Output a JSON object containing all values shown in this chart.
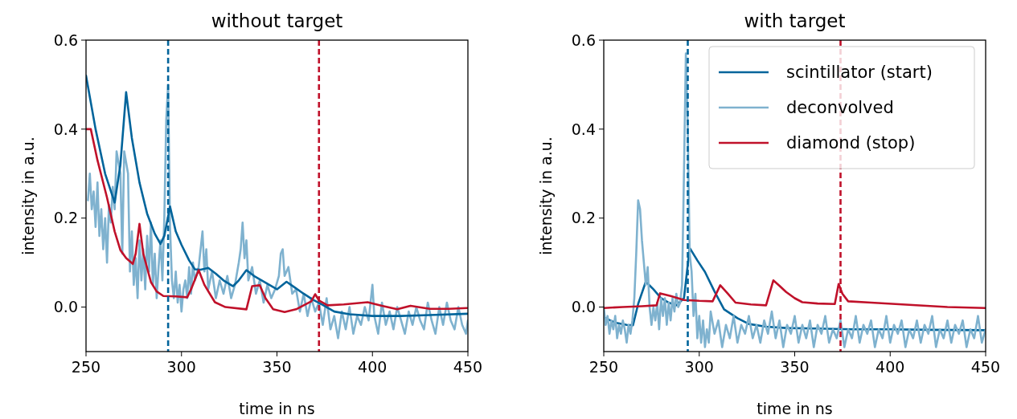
{
  "chart_data": [
    {
      "type": "line",
      "title": "without target",
      "xlabel": "time in ns",
      "ylabel": "intensity in a.u.",
      "xlim": [
        250,
        450
      ],
      "xticks": [
        250,
        300,
        350,
        400,
        450
      ],
      "ylim": [
        -0.1,
        0.6
      ],
      "yticks": [
        {
          "value": 0,
          "label": "0.0"
        },
        {
          "value": 0.2,
          "label": "0.2"
        },
        {
          "value": 0.4,
          "label": "0.4"
        },
        {
          "value": 0.6,
          "label": "0.6"
        }
      ],
      "grid": false,
      "legend": false,
      "line_style": "solid",
      "marker": "none",
      "series": [
        {
          "color": "#7fb2cf",
          "x": [
            251,
            252,
            253,
            254,
            255,
            256,
            257,
            258,
            259,
            260,
            261,
            262,
            263,
            264,
            265,
            266,
            268,
            269,
            270,
            272,
            273,
            274,
            275,
            276,
            277,
            278,
            279,
            280,
            281,
            282,
            283,
            284,
            285,
            286,
            287,
            288,
            289,
            290,
            291,
            292,
            293,
            294,
            295,
            296,
            297,
            298,
            299,
            300,
            301,
            302,
            303,
            304,
            305,
            306,
            307,
            309,
            311,
            312,
            313,
            314,
            316,
            318,
            320,
            322,
            324,
            326,
            328,
            330,
            331,
            332,
            333,
            334,
            335,
            337,
            339,
            341,
            343,
            345,
            347,
            349,
            351,
            352,
            353,
            354,
            356,
            358,
            360,
            362,
            364,
            366,
            368,
            370,
            372,
            374,
            376,
            378,
            380,
            382,
            384,
            386,
            388,
            390,
            392,
            394,
            396,
            398,
            400,
            401,
            403,
            405,
            407,
            409,
            411,
            413,
            415,
            417,
            419,
            421,
            423,
            425,
            427,
            429,
            431,
            433,
            435,
            437,
            439,
            441,
            443,
            445,
            447,
            449,
            450
          ],
          "values": [
            0.24,
            0.3,
            0.22,
            0.26,
            0.18,
            0.28,
            0.16,
            0.22,
            0.13,
            0.2,
            0.1,
            0.23,
            0.19,
            0.27,
            0.22,
            0.35,
            0.3,
            0.12,
            0.35,
            0.3,
            0.08,
            0.17,
            0.05,
            0.11,
            0.02,
            0.15,
            0.06,
            0.13,
            0.04,
            0.16,
            0.08,
            0.19,
            0.05,
            0.12,
            0.02,
            0.09,
            0.15,
            0.06,
            0.2,
            0.42,
            0.5,
            0.18,
            0.06,
            0.02,
            0.08,
            0.01,
            0.05,
            -0.01,
            0.04,
            0.06,
            0.02,
            0.09,
            0.03,
            0.1,
            0.06,
            0.09,
            0.17,
            0.08,
            0.13,
            0.04,
            0.08,
            0.02,
            0.06,
            0.03,
            0.07,
            0.02,
            0.05,
            0.1,
            0.13,
            0.19,
            0.11,
            0.15,
            0.06,
            0.09,
            0.03,
            0.06,
            0.01,
            0.05,
            0.02,
            0.04,
            0.07,
            0.12,
            0.13,
            0.07,
            0.09,
            0.03,
            0.04,
            -0.01,
            0.03,
            -0.02,
            0.02,
            -0.01,
            0.01,
            -0.04,
            0.02,
            -0.05,
            -0.02,
            -0.07,
            -0.01,
            -0.05,
            0,
            -0.06,
            -0.02,
            -0.04,
            0,
            -0.03,
            0.05,
            -0.02,
            -0.06,
            0.01,
            -0.04,
            -0.01,
            -0.05,
            0,
            -0.03,
            -0.06,
            -0.01,
            -0.04,
            0,
            -0.03,
            -0.05,
            0.01,
            -0.03,
            -0.06,
            0,
            -0.04,
            0.01,
            -0.03,
            -0.05,
            0,
            -0.04,
            -0.06,
            -0.03
          ]
        },
        {
          "color": "#00649b",
          "x": [
            250,
            255,
            260,
            265,
            268,
            271,
            274,
            278,
            282,
            286,
            289,
            291,
            294,
            297,
            300,
            304,
            307,
            310,
            314,
            318,
            322,
            327,
            330,
            334,
            338,
            342,
            346,
            350,
            355,
            359,
            364,
            369,
            374,
            380,
            388,
            400,
            415,
            430,
            450
          ],
          "values": [
            0.52,
            0.4,
            0.3,
            0.235,
            0.32,
            0.483,
            0.38,
            0.28,
            0.21,
            0.165,
            0.142,
            0.16,
            0.226,
            0.17,
            0.14,
            0.105,
            0.085,
            0.084,
            0.088,
            0.075,
            0.06,
            0.047,
            0.06,
            0.083,
            0.07,
            0.06,
            0.05,
            0.04,
            0.057,
            0.045,
            0.03,
            0.016,
            0.005,
            -0.01,
            -0.016,
            -0.02,
            -0.02,
            -0.018,
            -0.015
          ]
        },
        {
          "color": "#c0112a",
          "x": [
            250,
            252.5,
            256,
            261,
            265,
            268,
            271,
            274.5,
            276,
            278,
            280,
            284,
            287,
            290.5,
            297,
            303,
            305,
            309,
            312,
            317.5,
            323,
            334,
            337,
            341,
            344,
            348,
            354,
            360,
            368,
            370,
            372,
            376.5,
            385,
            397.5,
            405,
            413,
            420,
            430,
            440,
            449.5
          ],
          "values": [
            0.4,
            0.4,
            0.33,
            0.246,
            0.17,
            0.128,
            0.11,
            0.097,
            0.12,
            0.187,
            0.12,
            0.056,
            0.035,
            0.025,
            0.024,
            0.022,
            0.04,
            0.083,
            0.05,
            0.011,
            0.0,
            -0.005,
            0.047,
            0.049,
            0.02,
            -0.005,
            -0.011,
            -0.005,
            0.013,
            0.029,
            0.015,
            0.004,
            0.006,
            0.011,
            0.003,
            -0.005,
            0.003,
            -0.004,
            -0.004,
            -0.002
          ]
        }
      ],
      "ref_lines": [
        {
          "axis": "x",
          "value": 293,
          "color": "#00649b",
          "line_style": "dashed"
        },
        {
          "axis": "x",
          "value": 372,
          "color": "#c0112a",
          "line_style": "dashed"
        }
      ]
    },
    {
      "type": "line",
      "title": "with target",
      "xlabel": "time in ns",
      "ylabel": "intensity in a.u.",
      "xlim": [
        250,
        450
      ],
      "xticks": [
        250,
        300,
        350,
        400,
        450
      ],
      "ylim": [
        -0.1,
        0.6
      ],
      "yticks": [
        {
          "value": 0,
          "label": "0.0"
        },
        {
          "value": 0.2,
          "label": "0.2"
        },
        {
          "value": 0.4,
          "label": "0.4"
        },
        {
          "value": 0.6,
          "label": "0.6"
        }
      ],
      "grid": false,
      "legend": "top right",
      "line_style": "solid",
      "marker": "none",
      "series": [
        {
          "name": "scintillator (start)",
          "color": "#00649b",
          "x": [
            250,
            256,
            262,
            265.3,
            268,
            272,
            276,
            280,
            284,
            288,
            292,
            295,
            299,
            303,
            308,
            313,
            320,
            326,
            335,
            345.5,
            360,
            380,
            400,
            420,
            450
          ],
          "values": [
            -0.023,
            -0.035,
            -0.04,
            -0.041,
            0.007,
            0.057,
            0.04,
            0.02,
            0.01,
            0.004,
            0.02,
            0.133,
            0.105,
            0.079,
            0.035,
            -0.005,
            -0.025,
            -0.038,
            -0.044,
            -0.047,
            -0.048,
            -0.05,
            -0.05,
            -0.051,
            -0.052
          ]
        },
        {
          "name": "deconvolved",
          "color": "#7fb2cf",
          "x": [
            250,
            251,
            252,
            253,
            254,
            255,
            256,
            257,
            258,
            259,
            260,
            261,
            262,
            263,
            264,
            265,
            266,
            267,
            268,
            269,
            270,
            271,
            272,
            273,
            274,
            275,
            276,
            277,
            278,
            279,
            280,
            281,
            282,
            283,
            284,
            285,
            286,
            287,
            288,
            289,
            290,
            291,
            292,
            293,
            294,
            295,
            296,
            297,
            298,
            299,
            300,
            301,
            302,
            303,
            304,
            305,
            306,
            308,
            310,
            312,
            314,
            316,
            318,
            320,
            322,
            324,
            326,
            328,
            330,
            332,
            334,
            336,
            338,
            340,
            342,
            344,
            346,
            348,
            350,
            352,
            354,
            356,
            358,
            360,
            362,
            364,
            366,
            368,
            370,
            372,
            374,
            376,
            378,
            380,
            382,
            384,
            386,
            388,
            390,
            392,
            394,
            396,
            398,
            400,
            402,
            404,
            406,
            408,
            410,
            412,
            414,
            416,
            418,
            420,
            422,
            424,
            426,
            428,
            430,
            432,
            434,
            436,
            438,
            440,
            442,
            444,
            446,
            448,
            450
          ],
          "values": [
            0,
            -0.04,
            -0.02,
            -0.06,
            -0.03,
            -0.05,
            -0.02,
            -0.07,
            -0.04,
            -0.06,
            -0.03,
            -0.05,
            -0.08,
            -0.04,
            -0.06,
            -0.03,
            0.02,
            0.12,
            0.24,
            0.22,
            0.15,
            0.1,
            0.05,
            0.09,
            0,
            -0.04,
            0,
            -0.03,
            0.01,
            -0.05,
            0.02,
            -0.02,
            0.02,
            -0.04,
            0.01,
            -0.03,
            0.02,
            -0.01,
            0.03,
            0,
            0.01,
            0.05,
            0.3,
            0.57,
            0.4,
            0.12,
            0.08,
            -0.02,
            0.03,
            -0.07,
            -0.02,
            -0.08,
            -0.03,
            -0.09,
            -0.05,
            -0.08,
            -0.01,
            -0.06,
            -0.03,
            -0.09,
            -0.04,
            -0.07,
            -0.02,
            -0.08,
            -0.04,
            -0.06,
            -0.02,
            -0.07,
            -0.04,
            -0.08,
            -0.03,
            -0.06,
            -0.01,
            -0.07,
            -0.03,
            -0.09,
            -0.04,
            -0.06,
            -0.02,
            -0.08,
            -0.04,
            -0.07,
            -0.03,
            -0.09,
            -0.04,
            -0.06,
            -0.02,
            -0.08,
            -0.05,
            -0.07,
            -0.03,
            -0.09,
            -0.05,
            -0.07,
            -0.02,
            -0.08,
            -0.04,
            -0.06,
            -0.03,
            -0.09,
            -0.05,
            -0.07,
            -0.02,
            -0.08,
            -0.04,
            -0.06,
            -0.03,
            -0.09,
            -0.05,
            -0.07,
            -0.03,
            -0.08,
            -0.04,
            -0.06,
            -0.02,
            -0.09,
            -0.05,
            -0.07,
            -0.03,
            -0.08,
            -0.04,
            -0.06,
            -0.03,
            -0.09,
            -0.05,
            -0.07,
            -0.02,
            -0.08,
            -0.05
          ]
        },
        {
          "name": "diamond (stop)",
          "color": "#c0112a",
          "x": [
            250,
            260,
            270,
            277.6,
            279.5,
            285,
            292,
            300,
            307,
            311,
            315,
            319,
            327,
            335,
            338.8,
            342,
            345.5,
            350,
            354,
            362,
            371,
            373,
            375,
            378,
            390,
            410,
            430,
            450
          ],
          "values": [
            -0.002,
            0,
            0.002,
            0.004,
            0.031,
            0.025,
            0.016,
            0.014,
            0.013,
            0.049,
            0.03,
            0.01,
            0.006,
            0.004,
            0.06,
            0.048,
            0.034,
            0.02,
            0.011,
            0.008,
            0.007,
            0.052,
            0.03,
            0.013,
            0.01,
            0.005,
            0.0,
            -0.002
          ]
        }
      ],
      "ref_lines": [
        {
          "axis": "x",
          "value": 294,
          "color": "#00649b",
          "line_style": "dashed"
        },
        {
          "axis": "x",
          "value": 374,
          "color": "#c0112a",
          "line_style": "dashed"
        }
      ]
    }
  ]
}
